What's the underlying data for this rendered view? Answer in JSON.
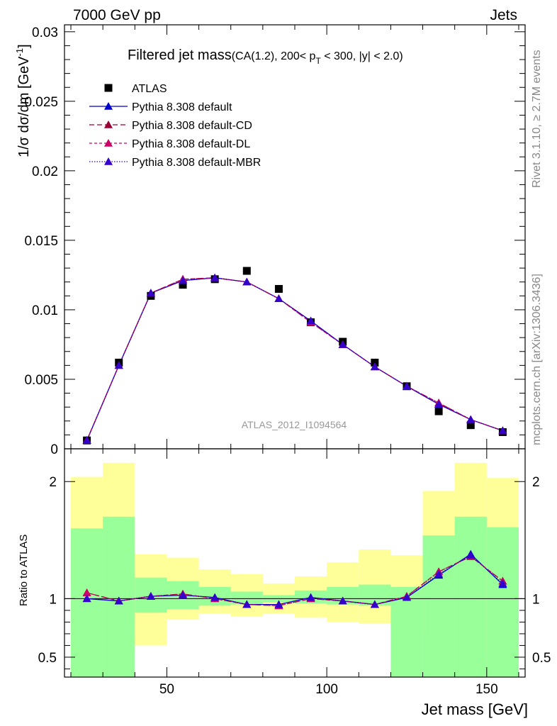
{
  "header": {
    "left": "7000 GeV pp",
    "right": "Jets"
  },
  "side_labels": {
    "rivet": "Rivet 3.1.10, ≥ 2.7M events",
    "mcplots": "mcplots.cern.ch [arXiv:1306.3436]"
  },
  "colors": {
    "atlas": "#000000",
    "default": "#0000cc",
    "cd": "#990033",
    "dl": "#cc0066",
    "mbr": "#3300cc",
    "band_inner": "#99ff99",
    "band_outer": "#ffff99"
  },
  "chart_data": [
    {
      "type": "scatter",
      "title_main": "Filtered jet mass",
      "title_sub": "(CA(1.2), 200< p",
      "title_sub_script": "T",
      "title_sub_end": " < 300, |y| < 2.0)",
      "watermark": "ATLAS_2012_I1094564",
      "ylabel": "1/σ dσ/dm [GeV",
      "ylabel_sup": "-1",
      "ylabel_end": "]",
      "xlim": [
        18,
        162
      ],
      "ylim": [
        0,
        0.0305
      ],
      "yticks": [
        0,
        0.005,
        0.01,
        0.015,
        0.02,
        0.025,
        0.03
      ],
      "ytick_labels": [
        "0",
        "0.005",
        "0.01",
        "0.015",
        "0.02",
        "0.025",
        "0.03"
      ],
      "legend_position": "top-left",
      "x": [
        25,
        35,
        45,
        55,
        65,
        75,
        85,
        95,
        105,
        115,
        125,
        135,
        145,
        155
      ],
      "series": [
        {
          "name": "ATLAS",
          "key": "atlas",
          "marker": "square",
          "values": [
            0.0006,
            0.0062,
            0.011,
            0.0118,
            0.0122,
            0.0128,
            0.0115,
            0.0091,
            0.0077,
            0.0062,
            0.0045,
            0.0027,
            0.0017,
            0.0012
          ]
        },
        {
          "name": "Pythia 8.308 default",
          "key": "default",
          "marker": "triangle",
          "dash": "",
          "values": [
            0.0006,
            0.006,
            0.0112,
            0.0121,
            0.0123,
            0.012,
            0.0108,
            0.0092,
            0.0075,
            0.0059,
            0.0045,
            0.0032,
            0.0021,
            0.0013
          ]
        },
        {
          "name": "Pythia 8.308 default-CD",
          "key": "cd",
          "marker": "triangle",
          "dash": "7,4",
          "values": [
            0.00062,
            0.006,
            0.0112,
            0.0122,
            0.0123,
            0.012,
            0.0108,
            0.0091,
            0.0075,
            0.0059,
            0.0045,
            0.0033,
            0.0021,
            0.0013
          ]
        },
        {
          "name": "Pythia 8.308 default-DL",
          "key": "dl",
          "marker": "triangle",
          "dash": "4,3",
          "values": [
            0.00062,
            0.006,
            0.0112,
            0.0122,
            0.0123,
            0.012,
            0.0108,
            0.0091,
            0.0075,
            0.0059,
            0.0045,
            0.0033,
            0.0021,
            0.0013
          ]
        },
        {
          "name": "Pythia 8.308 default-MBR",
          "key": "mbr",
          "marker": "triangle",
          "dash": "1.5,2",
          "values": [
            0.0006,
            0.006,
            0.0112,
            0.0121,
            0.0123,
            0.012,
            0.0108,
            0.0092,
            0.0075,
            0.0059,
            0.0045,
            0.0032,
            0.0021,
            0.0013
          ]
        }
      ]
    },
    {
      "type": "line",
      "ylabel": "Ratio to ATLAS",
      "xlabel": "Jet mass [GeV]",
      "xlim": [
        18,
        162
      ],
      "ylim": [
        0.33,
        2.28
      ],
      "yticks": [
        0.5,
        1,
        2
      ],
      "ytick_labels": [
        "0.5",
        "1",
        "2"
      ],
      "xticks": [
        50,
        100,
        150
      ],
      "xtick_labels": [
        "50",
        "100",
        "150"
      ],
      "reference_line": 1,
      "bin_edges": [
        20,
        30,
        40,
        50,
        60,
        70,
        80,
        90,
        100,
        110,
        120,
        130,
        140,
        150,
        160
      ],
      "band_inner": [
        [
          0.33,
          1.6
        ],
        [
          0.33,
          1.7
        ],
        [
          0.88,
          1.18
        ],
        [
          0.91,
          1.15
        ],
        [
          0.94,
          1.1
        ],
        [
          0.95,
          1.06
        ],
        [
          0.97,
          1.03
        ],
        [
          0.96,
          1.07
        ],
        [
          0.95,
          1.1
        ],
        [
          0.94,
          1.12
        ],
        [
          0.33,
          1.1
        ],
        [
          0.33,
          1.54
        ],
        [
          0.33,
          1.7
        ],
        [
          0.33,
          1.61
        ]
      ],
      "band_outer": [
        [
          0.33,
          2.04
        ],
        [
          0.58,
          2.16
        ],
        [
          0.6,
          1.38
        ],
        [
          0.82,
          1.35
        ],
        [
          0.87,
          1.25
        ],
        [
          0.85,
          1.21
        ],
        [
          0.87,
          1.13
        ],
        [
          0.84,
          1.19
        ],
        [
          0.8,
          1.31
        ],
        [
          0.79,
          1.42
        ],
        [
          0.72,
          1.37
        ],
        [
          0.71,
          1.92
        ],
        [
          0.56,
          2.16
        ],
        [
          0.33,
          2.03
        ]
      ],
      "x": [
        25,
        35,
        45,
        55,
        65,
        75,
        85,
        95,
        105,
        115,
        125,
        135,
        145,
        155
      ],
      "series": [
        {
          "name": "Pythia 8.308 default",
          "key": "default",
          "dash": "",
          "values": [
            1.0,
            0.98,
            1.02,
            1.03,
            1.01,
            0.95,
            0.95,
            1.01,
            0.98,
            0.95,
            1.01,
            1.2,
            1.38,
            1.12
          ]
        },
        {
          "name": "Pythia 8.308 default-CD",
          "key": "cd",
          "dash": "7,4",
          "values": [
            1.05,
            0.98,
            1.02,
            1.04,
            1.0,
            0.95,
            0.94,
            1.0,
            0.98,
            0.95,
            1.02,
            1.23,
            1.36,
            1.15
          ]
        },
        {
          "name": "Pythia 8.308 default-DL",
          "key": "dl",
          "dash": "4,3",
          "values": [
            1.05,
            0.98,
            1.02,
            1.04,
            1.0,
            0.95,
            0.94,
            1.0,
            0.98,
            0.95,
            1.02,
            1.23,
            1.36,
            1.15
          ]
        },
        {
          "name": "Pythia 8.308 default-MBR",
          "key": "mbr",
          "dash": "1.5,2",
          "values": [
            1.0,
            0.98,
            1.02,
            1.03,
            1.01,
            0.95,
            0.95,
            1.01,
            0.98,
            0.95,
            1.01,
            1.21,
            1.37,
            1.13
          ]
        }
      ]
    }
  ]
}
